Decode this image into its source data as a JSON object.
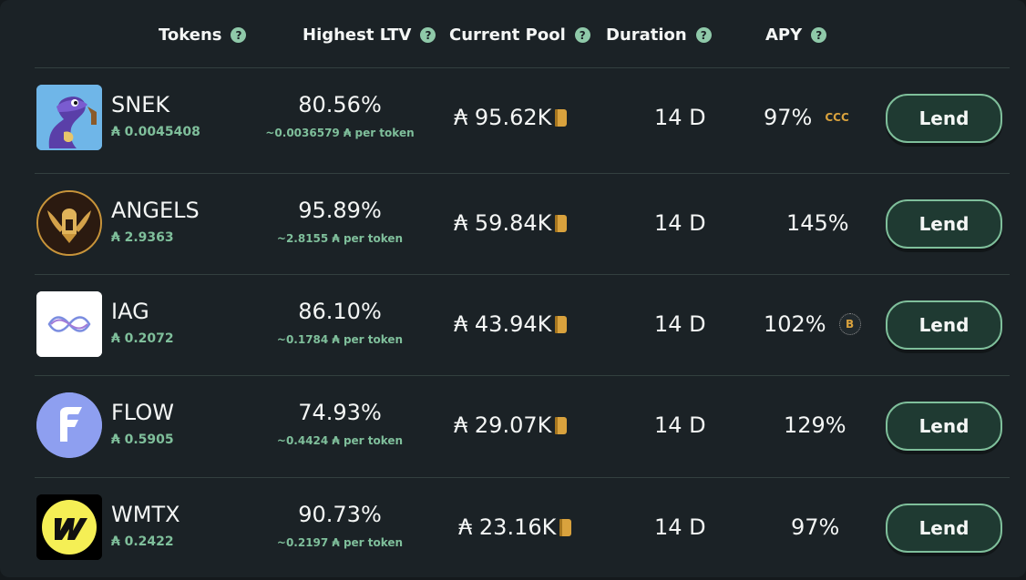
{
  "columns": {
    "tokens": "Tokens",
    "ltv": "Highest LTV",
    "pool": "Current Pool",
    "duration": "Duration",
    "apy": "APY",
    "help_glyph": "?"
  },
  "rows": [
    {
      "name": "SNEK",
      "price": "₳ 0.0045408",
      "ltv": "80.56%",
      "ltv_sub": "~0.0036579 ₳ per token",
      "pool": "₳ 95.62K",
      "duration": "14 D",
      "apy": "97%",
      "apy_badge": "CCC",
      "lend": "Lend",
      "logo_icon": "snake-icon"
    },
    {
      "name": "ANGELS",
      "price": "₳ 2.9363",
      "ltv": "95.89%",
      "ltv_sub": "~2.8155 ₳ per token",
      "pool": "₳ 59.84K",
      "duration": "14 D",
      "apy": "145%",
      "apy_badge": "",
      "lend": "Lend",
      "logo_icon": "winged-helmet-icon"
    },
    {
      "name": "IAG",
      "price": "₳ 0.2072",
      "ltv": "86.10%",
      "ltv_sub": "~0.1784 ₳ per token",
      "pool": "₳ 43.94K",
      "duration": "14 D",
      "apy": "102%",
      "apy_badge": "B",
      "lend": "Lend",
      "logo_icon": "infinity-waves-icon"
    },
    {
      "name": "FLOW",
      "price": "₳ 0.5905",
      "ltv": "74.93%",
      "ltv_sub": "~0.4424 ₳ per token",
      "pool": "₳ 29.07K",
      "duration": "14 D",
      "apy": "129%",
      "apy_badge": "",
      "lend": "Lend",
      "logo_icon": "flow-f-icon"
    },
    {
      "name": "WMTX",
      "price": "₳ 0.2422",
      "ltv": "90.73%",
      "ltv_sub": "~0.2197 ₳ per token",
      "pool": "₳ 23.16K",
      "duration": "14 D",
      "apy": "97%",
      "apy_badge": "",
      "lend": "Lend",
      "logo_icon": "wmtx-w-icon"
    }
  ],
  "colors": {
    "background": "#1b2226",
    "accent_green": "#7fbf9b",
    "button_fill": "#1f3a32",
    "book_gold": "#d9a23d"
  }
}
